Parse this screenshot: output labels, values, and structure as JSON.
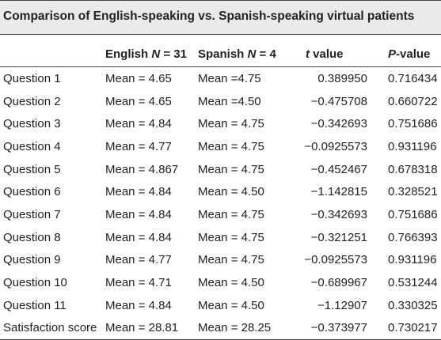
{
  "table": {
    "title": "Comparison of English-speaking vs. Spanish-speaking virtual patients",
    "headers": {
      "col0": "",
      "col1_prefix": "English ",
      "col1_var": "N",
      "col1_suffix": " = 31",
      "col2_prefix": "Spanish ",
      "col2_var": "N",
      "col2_suffix": " = 4",
      "col3_var": "t",
      "col3_suffix": " value",
      "col4_var": "P",
      "col4_suffix": "-value"
    },
    "rows": [
      {
        "label": "Question 1",
        "english": "Mean = 4.65",
        "spanish": "Mean =4.75",
        "t": "0.389950",
        "p": "0.716434"
      },
      {
        "label": "Question 2",
        "english": "Mean = 4.65",
        "spanish": "Mean =4.50",
        "t": "−0.475708",
        "p": "0.660722"
      },
      {
        "label": "Question 3",
        "english": "Mean = 4.84",
        "spanish": "Mean = 4.75",
        "t": "−0.342693",
        "p": "0.751686"
      },
      {
        "label": "Question 4",
        "english": "Mean = 4.77",
        "spanish": "Mean = 4.75",
        "t": "−0.0925573",
        "p": "0.931196"
      },
      {
        "label": "Question 5",
        "english": "Mean = 4.867",
        "spanish": "Mean = 4.75",
        "t": "−0.452467",
        "p": "0.678318"
      },
      {
        "label": "Question 6",
        "english": "Mean = 4.84",
        "spanish": "Mean = 4.50",
        "t": "−1.142815",
        "p": "0.328521"
      },
      {
        "label": "Question 7",
        "english": "Mean = 4.84",
        "spanish": "Mean = 4.75",
        "t": "−0.342693",
        "p": "0.751686"
      },
      {
        "label": "Question 8",
        "english": "Mean = 4.84",
        "spanish": "Mean = 4.75",
        "t": "−0.321251",
        "p": "0.766393"
      },
      {
        "label": "Question 9",
        "english": "Mean = 4.77",
        "spanish": "Mean = 4.75",
        "t": "−0.0925573",
        "p": "0.931196"
      },
      {
        "label": "Question 10",
        "english": "Mean = 4.71",
        "spanish": "Mean = 4.50",
        "t": "−0.689967",
        "p": "0.531244"
      },
      {
        "label": "Question 11",
        "english": "Mean = 4.84",
        "spanish": "Mean = 4.50",
        "t": "−1.12907",
        "p": "0.330325"
      },
      {
        "label": "Satisfaction score",
        "english": "Mean = 28.81",
        "spanish": "Mean = 28.25",
        "t": "−0.373977",
        "p": "0.730217"
      }
    ]
  }
}
